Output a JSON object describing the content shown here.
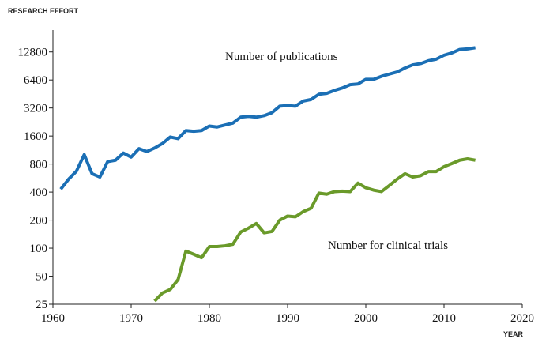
{
  "chart_data": {
    "type": "line",
    "title": "RESEARCH EFFORT",
    "x_label": "YEAR",
    "annotations": [
      "Number of publications",
      "Number for clinical trials"
    ],
    "log_y": true,
    "xlim": [
      1960,
      2020
    ],
    "xticks": [
      1960,
      1970,
      1980,
      1990,
      2000,
      2010,
      2020
    ],
    "ylim": [
      25,
      22000
    ],
    "yticks": [
      25,
      50,
      100,
      200,
      400,
      800,
      1600,
      3200,
      6400,
      12800
    ],
    "x": [
      1961,
      1962,
      1963,
      1964,
      1965,
      1966,
      1967,
      1968,
      1969,
      1970,
      1971,
      1972,
      1973,
      1974,
      1975,
      1976,
      1977,
      1978,
      1979,
      1980,
      1981,
      1982,
      1983,
      1984,
      1985,
      1986,
      1987,
      1988,
      1989,
      1990,
      1991,
      1992,
      1993,
      1994,
      1995,
      1996,
      1997,
      1998,
      1999,
      2000,
      2001,
      2002,
      2003,
      2004,
      2005,
      2006,
      2007,
      2008,
      2009,
      2010,
      2011,
      2012,
      2013,
      2014
    ],
    "series": [
      {
        "name": "Number of publications",
        "color": "#1b6fb5",
        "values": [
          430,
          550,
          670,
          1010,
          630,
          580,
          850,
          880,
          1050,
          950,
          1170,
          1090,
          1190,
          1330,
          1560,
          1500,
          1830,
          1800,
          1830,
          2050,
          2000,
          2100,
          2200,
          2550,
          2600,
          2550,
          2650,
          2850,
          3350,
          3400,
          3350,
          3800,
          3950,
          4500,
          4600,
          4950,
          5250,
          5700,
          5800,
          6500,
          6500,
          7000,
          7400,
          7800,
          8600,
          9300,
          9600,
          10300,
          10700,
          11800,
          12500,
          13600,
          13800,
          14200
        ]
      },
      {
        "name": "Number for clinical trials",
        "color": "#6a9a2a",
        "values": [
          null,
          null,
          null,
          null,
          null,
          null,
          null,
          null,
          null,
          null,
          null,
          null,
          27,
          33,
          36,
          46,
          93,
          86,
          79,
          104,
          104,
          106,
          110,
          149,
          164,
          184,
          146,
          151,
          200,
          221,
          217,
          247,
          268,
          390,
          380,
          405,
          410,
          405,
          500,
          445,
          420,
          405,
          470,
          550,
          630,
          580,
          600,
          665,
          665,
          750,
          810,
          880,
          910,
          880
        ]
      }
    ]
  }
}
